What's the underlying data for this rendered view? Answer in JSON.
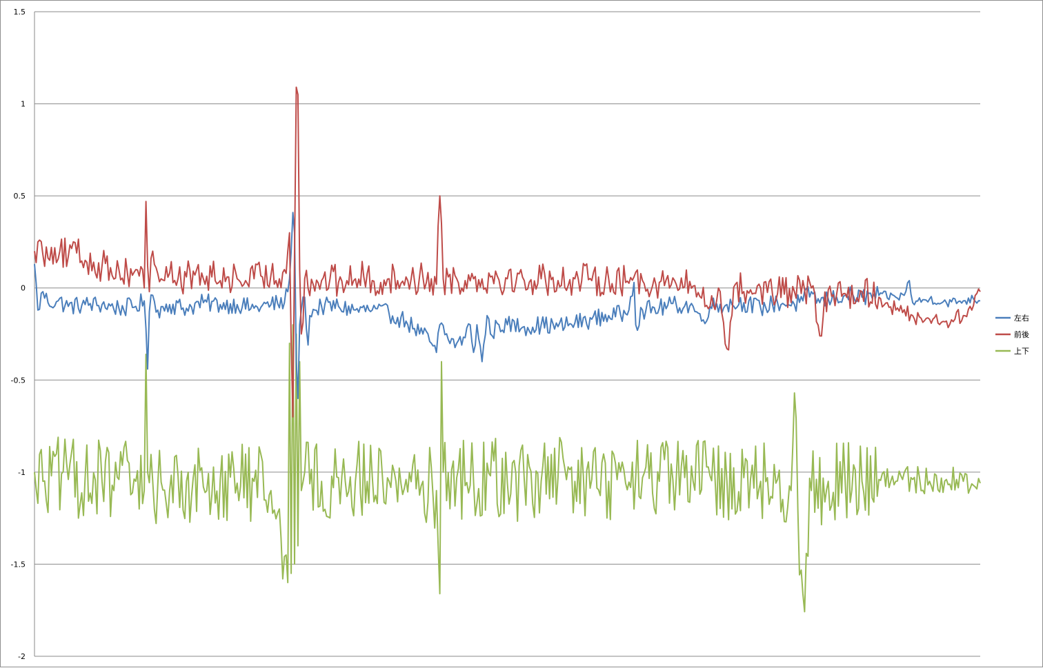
{
  "chart_data": {
    "type": "line",
    "title": "",
    "xlabel": "",
    "ylabel": "",
    "ylim": [
      -2,
      1.5
    ],
    "yticks": [
      1.5,
      1,
      0.5,
      0,
      -0.5,
      -1,
      -1.5,
      -2
    ],
    "ytick_labels": [
      "1.5",
      "1",
      "0.5",
      "0",
      "-0.5",
      "-1",
      "-1.5",
      "-2"
    ],
    "grid": true,
    "legend_position": "right",
    "n_points": 561,
    "series": [
      {
        "name": "左右",
        "color": "#4a7ebb",
        "keypoints": [
          [
            0,
            0.13
          ],
          [
            2,
            -0.12
          ],
          [
            5,
            -0.02
          ],
          [
            8,
            -0.08
          ],
          [
            14,
            -0.07
          ],
          [
            20,
            -0.1
          ],
          [
            30,
            -0.09
          ],
          [
            40,
            -0.09
          ],
          [
            50,
            -0.11
          ],
          [
            60,
            -0.1
          ],
          [
            65,
            -0.07
          ],
          [
            66,
            -0.22
          ],
          [
            67,
            -0.44
          ],
          [
            68,
            -0.13
          ],
          [
            70,
            -0.04
          ],
          [
            73,
            -0.12
          ],
          [
            80,
            -0.09
          ],
          [
            90,
            -0.11
          ],
          [
            100,
            -0.08
          ],
          [
            110,
            -0.09
          ],
          [
            120,
            -0.09
          ],
          [
            130,
            -0.11
          ],
          [
            140,
            -0.09
          ],
          [
            148,
            -0.08
          ],
          [
            150,
            -0.02
          ],
          [
            152,
            0.2
          ],
          [
            153,
            0.41
          ],
          [
            154,
            0.3
          ],
          [
            155,
            -0.4
          ],
          [
            156,
            -0.6
          ],
          [
            157,
            -0.2
          ],
          [
            158,
            -0.12
          ],
          [
            160,
            -0.05
          ],
          [
            162,
            -0.31
          ],
          [
            163,
            -0.15
          ],
          [
            166,
            -0.12
          ],
          [
            170,
            -0.1
          ],
          [
            180,
            -0.1
          ],
          [
            190,
            -0.12
          ],
          [
            200,
            -0.12
          ],
          [
            210,
            -0.14
          ],
          [
            215,
            -0.16
          ],
          [
            220,
            -0.18
          ],
          [
            225,
            -0.22
          ],
          [
            230,
            -0.25
          ],
          [
            235,
            -0.3
          ],
          [
            238,
            -0.35
          ],
          [
            240,
            -0.2
          ],
          [
            245,
            -0.28
          ],
          [
            250,
            -0.3
          ],
          [
            255,
            -0.27
          ],
          [
            258,
            -0.2
          ],
          [
            260,
            -0.35
          ],
          [
            262,
            -0.2
          ],
          [
            265,
            -0.4
          ],
          [
            268,
            -0.15
          ],
          [
            270,
            -0.25
          ],
          [
            275,
            -0.2
          ],
          [
            280,
            -0.2
          ],
          [
            290,
            -0.21
          ],
          [
            300,
            -0.2
          ],
          [
            310,
            -0.21
          ],
          [
            320,
            -0.19
          ],
          [
            330,
            -0.17
          ],
          [
            340,
            -0.15
          ],
          [
            350,
            -0.14
          ],
          [
            355,
            0.03
          ],
          [
            356,
            -0.2
          ],
          [
            360,
            -0.12
          ],
          [
            370,
            -0.11
          ],
          [
            380,
            -0.09
          ],
          [
            390,
            -0.1
          ],
          [
            395,
            -0.18
          ],
          [
            400,
            -0.1
          ],
          [
            410,
            -0.09
          ],
          [
            420,
            -0.08
          ],
          [
            430,
            -0.11
          ],
          [
            440,
            -0.08
          ],
          [
            450,
            -0.09
          ],
          [
            455,
            -0.07
          ],
          [
            460,
            -0.02
          ],
          [
            465,
            -0.08
          ],
          [
            470,
            -0.06
          ],
          [
            475,
            -0.05
          ],
          [
            480,
            -0.04
          ],
          [
            490,
            -0.05
          ],
          [
            500,
            -0.04
          ],
          [
            510,
            -0.05
          ],
          [
            515,
            -0.04
          ],
          [
            518,
            0.04
          ],
          [
            520,
            -0.08
          ],
          [
            530,
            -0.06
          ],
          [
            540,
            -0.08
          ],
          [
            550,
            -0.07
          ],
          [
            556,
            -0.06
          ],
          [
            560,
            -0.07
          ]
        ],
        "noise": 0.05
      },
      {
        "name": "前後",
        "color": "#be4b48",
        "keypoints": [
          [
            0,
            0.2
          ],
          [
            2,
            0.25
          ],
          [
            5,
            0.18
          ],
          [
            10,
            0.22
          ],
          [
            15,
            0.2
          ],
          [
            20,
            0.17
          ],
          [
            25,
            0.19
          ],
          [
            30,
            0.15
          ],
          [
            35,
            0.14
          ],
          [
            40,
            0.12
          ],
          [
            45,
            0.11
          ],
          [
            50,
            0.1
          ],
          [
            55,
            0.08
          ],
          [
            60,
            0.1
          ],
          [
            64,
            0.1
          ],
          [
            65,
            0.0
          ],
          [
            66,
            0.47
          ],
          [
            67,
            0.12
          ],
          [
            68,
            -0.02
          ],
          [
            70,
            0.2
          ],
          [
            75,
            0.05
          ],
          [
            80,
            0.08
          ],
          [
            85,
            0.05
          ],
          [
            90,
            0.06
          ],
          [
            95,
            0.07
          ],
          [
            100,
            0.05
          ],
          [
            105,
            0.06
          ],
          [
            110,
            0.04
          ],
          [
            115,
            0.06
          ],
          [
            120,
            0.05
          ],
          [
            125,
            0.04
          ],
          [
            130,
            0.05
          ],
          [
            135,
            0.06
          ],
          [
            140,
            0.07
          ],
          [
            145,
            0.05
          ],
          [
            148,
            0.1
          ],
          [
            150,
            0.2
          ],
          [
            151,
            0.3
          ],
          [
            152,
            -0.3
          ],
          [
            153,
            -0.7
          ],
          [
            154,
            0.2
          ],
          [
            155,
            1.09
          ],
          [
            156,
            1.05
          ],
          [
            157,
            0.1
          ],
          [
            158,
            -0.25
          ],
          [
            160,
            0.05
          ],
          [
            165,
            0.02
          ],
          [
            170,
            0.04
          ],
          [
            175,
            0.05
          ],
          [
            180,
            0.03
          ],
          [
            185,
            0.04
          ],
          [
            190,
            0.05
          ],
          [
            195,
            0.06
          ],
          [
            200,
            0.04
          ],
          [
            205,
            0.03
          ],
          [
            210,
            0.05
          ],
          [
            215,
            0.04
          ],
          [
            220,
            0.06
          ],
          [
            225,
            0.04
          ],
          [
            230,
            0.06
          ],
          [
            235,
            0.05
          ],
          [
            238,
            0.02
          ],
          [
            240,
            0.5
          ],
          [
            241,
            0.35
          ],
          [
            242,
            0.05
          ],
          [
            245,
            0.06
          ],
          [
            250,
            0.05
          ],
          [
            255,
            0.04
          ],
          [
            260,
            0.05
          ],
          [
            270,
            0.06
          ],
          [
            280,
            0.05
          ],
          [
            290,
            0.04
          ],
          [
            300,
            0.05
          ],
          [
            310,
            0.04
          ],
          [
            320,
            0.05
          ],
          [
            330,
            0.04
          ],
          [
            340,
            0.05
          ],
          [
            350,
            0.03
          ],
          [
            355,
            0.06
          ],
          [
            360,
            0.04
          ],
          [
            370,
            0.03
          ],
          [
            380,
            0.02
          ],
          [
            390,
            0.01
          ],
          [
            400,
            -0.1
          ],
          [
            405,
            0.0
          ],
          [
            410,
            -0.33
          ],
          [
            415,
            0.02
          ],
          [
            420,
            -0.02
          ],
          [
            430,
            0.0
          ],
          [
            440,
            -0.03
          ],
          [
            450,
            -0.02
          ],
          [
            460,
            0.0
          ],
          [
            465,
            -0.26
          ],
          [
            470,
            -0.01
          ],
          [
            480,
            -0.03
          ],
          [
            490,
            -0.02
          ],
          [
            500,
            -0.05
          ],
          [
            505,
            -0.08
          ],
          [
            510,
            -0.12
          ],
          [
            520,
            -0.15
          ],
          [
            530,
            -0.17
          ],
          [
            540,
            -0.18
          ],
          [
            545,
            -0.17
          ],
          [
            550,
            -0.15
          ],
          [
            555,
            -0.12
          ],
          [
            558,
            -0.03
          ],
          [
            560,
            -0.02
          ]
        ],
        "noise": 0.09
      },
      {
        "name": "上下",
        "color": "#98b954",
        "keypoints": [
          [
            0,
            -1.0
          ],
          [
            5,
            -1.05
          ],
          [
            10,
            -1.02
          ],
          [
            20,
            -1.04
          ],
          [
            30,
            -1.03
          ],
          [
            40,
            -1.05
          ],
          [
            50,
            -1.04
          ],
          [
            60,
            -1.05
          ],
          [
            65,
            -1.1
          ],
          [
            66,
            -0.36
          ],
          [
            67,
            -1.0
          ],
          [
            70,
            -1.05
          ],
          [
            80,
            -1.1
          ],
          [
            90,
            -1.05
          ],
          [
            100,
            -1.08
          ],
          [
            110,
            -1.04
          ],
          [
            120,
            -1.06
          ],
          [
            130,
            -1.05
          ],
          [
            140,
            -1.1
          ],
          [
            145,
            -1.2
          ],
          [
            150,
            -1.6
          ],
          [
            151,
            -0.3
          ],
          [
            152,
            -1.55
          ],
          [
            153,
            -0.2
          ],
          [
            154,
            -1.5
          ],
          [
            155,
            -0.25
          ],
          [
            156,
            -1.4
          ],
          [
            157,
            -0.4
          ],
          [
            158,
            -1.1
          ],
          [
            160,
            -1.0
          ],
          [
            170,
            -1.05
          ],
          [
            180,
            -1.03
          ],
          [
            190,
            -1.05
          ],
          [
            200,
            -1.02
          ],
          [
            210,
            -1.05
          ],
          [
            220,
            -1.04
          ],
          [
            230,
            -1.05
          ],
          [
            238,
            -1.1
          ],
          [
            240,
            -1.66
          ],
          [
            241,
            -0.4
          ],
          [
            242,
            -1.0
          ],
          [
            250,
            -1.03
          ],
          [
            260,
            -1.05
          ],
          [
            270,
            -1.02
          ],
          [
            280,
            -1.06
          ],
          [
            290,
            -1.04
          ],
          [
            300,
            -1.05
          ],
          [
            310,
            -1.03
          ],
          [
            320,
            -1.05
          ],
          [
            330,
            -1.04
          ],
          [
            340,
            -1.05
          ],
          [
            350,
            -1.06
          ],
          [
            360,
            -1.03
          ],
          [
            370,
            -1.05
          ],
          [
            380,
            -1.04
          ],
          [
            390,
            -1.05
          ],
          [
            400,
            -1.02
          ],
          [
            410,
            -1.05
          ],
          [
            420,
            -1.03
          ],
          [
            430,
            -1.05
          ],
          [
            440,
            -1.04
          ],
          [
            448,
            -1.1
          ],
          [
            450,
            -0.57
          ],
          [
            452,
            -1.2
          ],
          [
            455,
            -1.66
          ],
          [
            460,
            -1.1
          ],
          [
            470,
            -1.05
          ],
          [
            480,
            -1.04
          ],
          [
            490,
            -1.05
          ],
          [
            500,
            -1.04
          ],
          [
            510,
            -1.05
          ],
          [
            520,
            -1.04
          ],
          [
            530,
            -1.05
          ],
          [
            540,
            -1.04
          ],
          [
            550,
            -1.05
          ],
          [
            560,
            -1.06
          ]
        ],
        "noise": 0.22
      }
    ]
  }
}
